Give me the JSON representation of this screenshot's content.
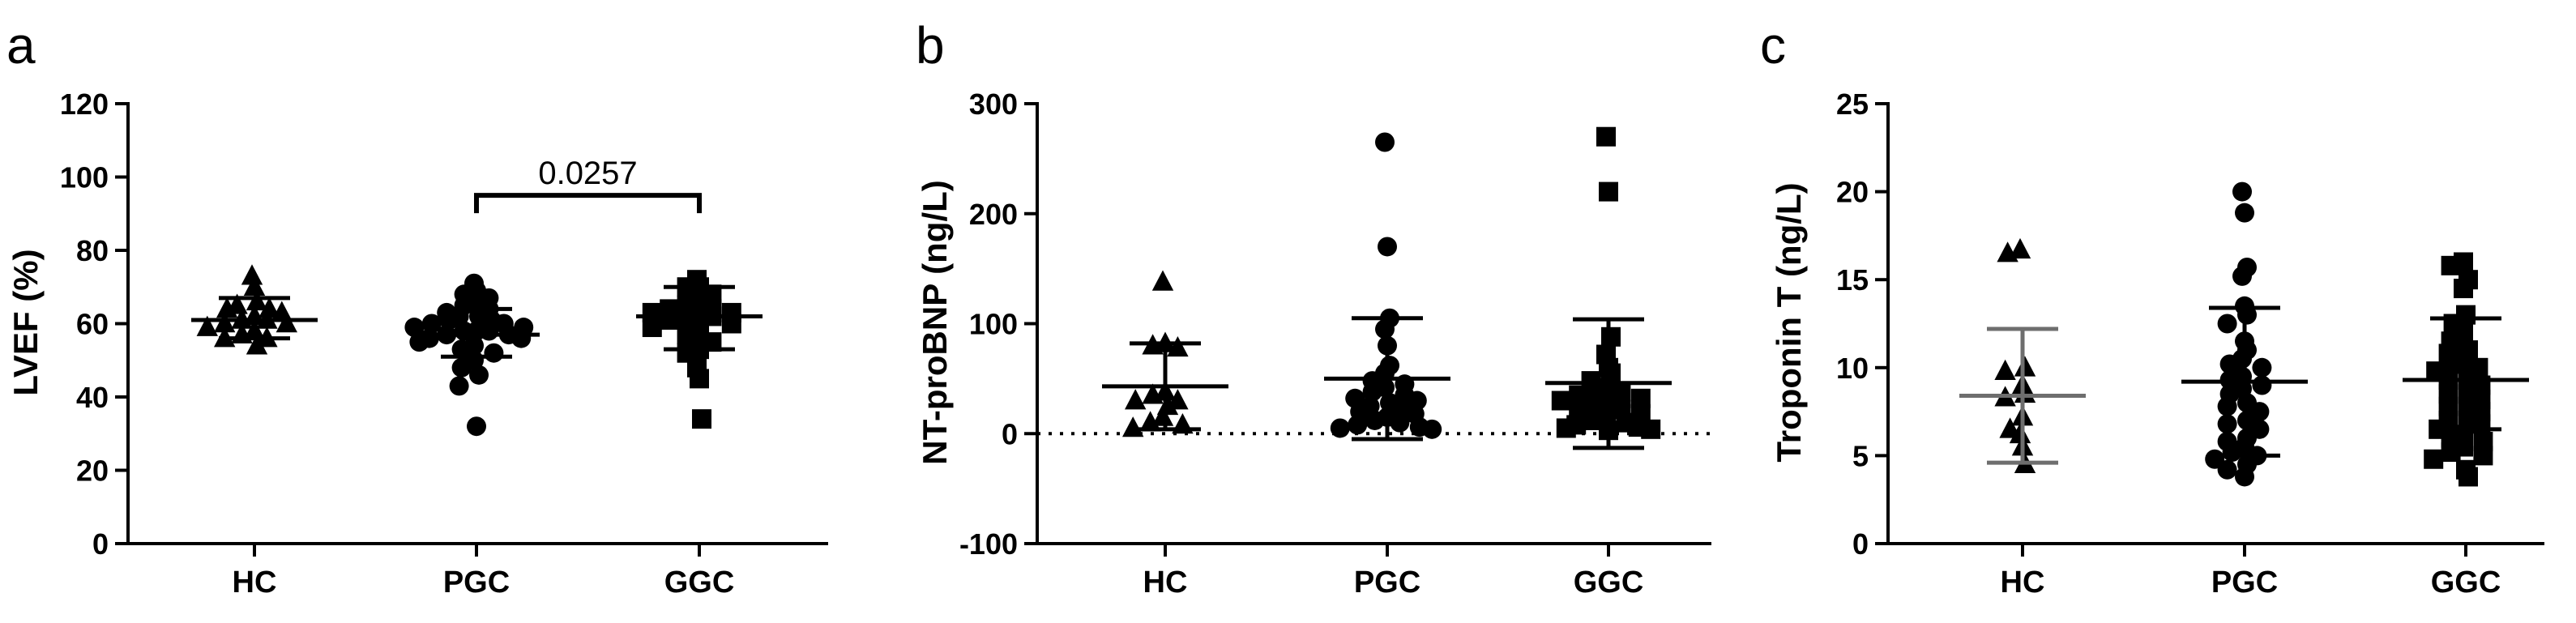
{
  "chart_data": [
    {
      "type": "scatter",
      "panel_letter": "a",
      "ylabel": "LVEF (%)",
      "ylim": [
        0,
        120
      ],
      "yticks": [
        "0",
        "20",
        "40",
        "60",
        "80",
        "100",
        "120"
      ],
      "categories": [
        "HC",
        "PGC",
        "GGC"
      ],
      "markers": [
        "triangle",
        "circle",
        "square"
      ],
      "zero_line": false,
      "groups": [
        {
          "name": "HC",
          "mean": 61,
          "sd_low": 56,
          "sd_high": 67,
          "error_color": "#000000",
          "points": [
            73,
            70,
            66,
            65,
            64,
            64,
            63,
            62,
            61,
            61,
            60,
            60,
            59,
            58,
            57,
            56,
            56,
            54
          ]
        },
        {
          "name": "PGC",
          "mean": 57,
          "sd_low": 51,
          "sd_high": 64,
          "error_color": "#000000",
          "points": [
            71,
            69,
            68,
            67,
            66,
            65,
            64,
            63,
            62,
            62,
            61,
            61,
            60,
            60,
            59,
            59,
            58,
            58,
            58,
            57,
            57,
            56,
            56,
            55,
            54,
            53,
            52,
            50,
            48,
            46,
            43,
            32
          ]
        },
        {
          "name": "GGC",
          "mean": 62,
          "sd_low": 53,
          "sd_high": 70,
          "error_color": "#000000",
          "points": [
            72,
            70,
            70,
            68,
            66,
            65,
            64,
            64,
            63,
            63,
            62,
            62,
            62,
            61,
            60,
            59,
            58,
            57,
            55,
            53,
            52,
            48,
            45,
            34
          ]
        }
      ],
      "annotation": {
        "text": "0.0257",
        "from": "PGC",
        "to": "GGC",
        "y": 95
      }
    },
    {
      "type": "scatter",
      "panel_letter": "b",
      "ylabel": "NT-proBNP (ng/L)",
      "ylim": [
        -100,
        300
      ],
      "yticks": [
        "-100",
        "0",
        "100",
        "200",
        "300"
      ],
      "categories": [
        "HC",
        "PGC",
        "GGC"
      ],
      "markers": [
        "triangle",
        "circle",
        "square"
      ],
      "zero_line": true,
      "groups": [
        {
          "name": "HC",
          "mean": 43,
          "sd_low": 4,
          "sd_high": 82,
          "error_color": "#000000",
          "points": [
            138,
            82,
            80,
            78,
            38,
            35,
            30,
            30,
            25,
            15,
            10,
            8,
            5
          ]
        },
        {
          "name": "PGC",
          "mean": 50,
          "sd_low": -5,
          "sd_high": 105,
          "error_color": "#000000",
          "points": [
            265,
            170,
            105,
            95,
            80,
            62,
            55,
            48,
            45,
            42,
            38,
            35,
            32,
            30,
            28,
            25,
            22,
            20,
            18,
            15,
            12,
            10,
            8,
            6,
            5,
            4
          ]
        },
        {
          "name": "GGC",
          "mean": 46,
          "sd_low": -13,
          "sd_high": 104,
          "error_color": "#000000",
          "points": [
            270,
            220,
            88,
            72,
            60,
            55,
            48,
            42,
            40,
            38,
            35,
            32,
            30,
            28,
            25,
            22,
            20,
            18,
            15,
            12,
            10,
            8,
            6,
            5,
            4,
            3
          ]
        }
      ]
    },
    {
      "type": "scatter",
      "panel_letter": "c",
      "ylabel": "Troponin T (ng/L)",
      "ylim": [
        0,
        25
      ],
      "yticks": [
        "0",
        "5",
        "10",
        "15",
        "20",
        "25"
      ],
      "categories": [
        "HC",
        "PGC",
        "GGC"
      ],
      "markers": [
        "triangle",
        "circle",
        "square"
      ],
      "zero_line": false,
      "groups": [
        {
          "name": "HC",
          "mean": 8.4,
          "sd_low": 4.6,
          "sd_high": 12.2,
          "error_color": "#6e6e6e",
          "points": [
            16.7,
            16.5,
            10.0,
            9.8,
            9.0,
            8.5,
            8.3,
            7.2,
            6.5,
            6.2,
            5.5,
            4.5
          ]
        },
        {
          "name": "PGC",
          "mean": 9.2,
          "sd_low": 5.0,
          "sd_high": 13.4,
          "error_color": "#000000",
          "points": [
            20.0,
            18.8,
            15.7,
            15.2,
            13.5,
            13.0,
            12.5,
            11.5,
            11.0,
            10.5,
            10.2,
            10.0,
            9.5,
            9.3,
            9.0,
            8.8,
            8.5,
            8.0,
            7.8,
            7.5,
            7.0,
            6.8,
            6.5,
            6.0,
            5.8,
            5.5,
            5.2,
            5.0,
            4.8,
            4.5,
            4.2,
            3.8
          ]
        },
        {
          "name": "GGC",
          "mean": 9.3,
          "sd_low": 6.5,
          "sd_high": 12.8,
          "error_color": "#000000",
          "points": [
            16.0,
            15.8,
            15.0,
            14.5,
            13.0,
            12.5,
            12.0,
            11.5,
            11.0,
            10.8,
            10.5,
            10.2,
            10.0,
            9.8,
            9.5,
            9.3,
            9.0,
            8.8,
            8.5,
            8.2,
            8.0,
            7.8,
            7.5,
            7.2,
            7.0,
            6.8,
            6.5,
            6.2,
            6.0,
            5.8,
            5.5,
            5.2,
            5.0,
            4.8,
            4.2,
            3.8
          ]
        }
      ]
    }
  ]
}
